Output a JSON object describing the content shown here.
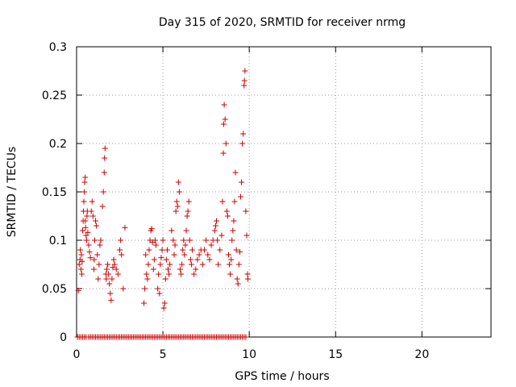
{
  "chart_data": {
    "type": "scatter",
    "title": "Day 315 of 2020, SRMTID for receiver nrmg",
    "xlabel": "GPS time / hours",
    "ylabel": "SRMTID / TECUs",
    "xlim": [
      0,
      24
    ],
    "ylim": [
      0,
      0.3
    ],
    "xticks": [
      0,
      5,
      10,
      15,
      20
    ],
    "xtick_labels": [
      "0",
      "5",
      "10",
      "15",
      "20"
    ],
    "yticks": [
      0,
      0.05,
      0.1,
      0.15,
      0.2,
      0.25,
      0.3
    ],
    "ytick_labels": [
      "0",
      "0.05",
      "0.1",
      "0.15",
      "0.2",
      "0.25",
      "0.3"
    ],
    "grid": true,
    "marker": "plus",
    "color": "#cc0000",
    "series": [
      {
        "name": "SRMTID",
        "points": [
          [
            0.1,
            0.048
          ],
          [
            0.15,
            0.075
          ],
          [
            0.2,
            0.08
          ],
          [
            0.22,
            0.09
          ],
          [
            0.25,
            0.07
          ],
          [
            0.28,
            0.085
          ],
          [
            0.3,
            0.065
          ],
          [
            0.32,
            0.078
          ],
          [
            0.35,
            0.11
          ],
          [
            0.38,
            0.12
          ],
          [
            0.4,
            0.13
          ],
          [
            0.42,
            0.14
          ],
          [
            0.45,
            0.15
          ],
          [
            0.47,
            0.16
          ],
          [
            0.5,
            0.165
          ],
          [
            0.5,
            0.12
          ],
          [
            0.52,
            0.113
          ],
          [
            0.55,
            0.105
          ],
          [
            0.58,
            0.1
          ],
          [
            0.6,
            0.125
          ],
          [
            0.62,
            0.13
          ],
          [
            0.65,
            0.108
          ],
          [
            0.7,
            0.095
          ],
          [
            0.75,
            0.088
          ],
          [
            0.8,
            0.082
          ],
          [
            0.85,
            0.13
          ],
          [
            0.9,
            0.14
          ],
          [
            0.95,
            0.125
          ],
          [
            1.0,
            0.07
          ],
          [
            1.02,
            0.08
          ],
          [
            1.05,
            0.1
          ],
          [
            1.1,
            0.12
          ],
          [
            1.15,
            0.115
          ],
          [
            1.2,
            0.085
          ],
          [
            1.25,
            0.06
          ],
          [
            1.3,
            0.075
          ],
          [
            1.35,
            0.095
          ],
          [
            1.4,
            0.1
          ],
          [
            1.5,
            0.135
          ],
          [
            1.55,
            0.15
          ],
          [
            1.6,
            0.17
          ],
          [
            1.62,
            0.185
          ],
          [
            1.65,
            0.195
          ],
          [
            1.7,
            0.065
          ],
          [
            1.72,
            0.06
          ],
          [
            1.75,
            0.07
          ],
          [
            1.8,
            0.075
          ],
          [
            1.85,
            0.065
          ],
          [
            1.9,
            0.055
          ],
          [
            1.95,
            0.045
          ],
          [
            2.0,
            0.038
          ],
          [
            2.05,
            0.06
          ],
          [
            2.1,
            0.072
          ],
          [
            2.15,
            0.08
          ],
          [
            2.2,
            0.075
          ],
          [
            2.3,
            0.07
          ],
          [
            2.4,
            0.065
          ],
          [
            2.5,
            0.09
          ],
          [
            2.55,
            0.1
          ],
          [
            2.6,
            0.085
          ],
          [
            2.7,
            0.05
          ],
          [
            2.8,
            0.113
          ],
          [
            3.9,
            0.035
          ],
          [
            3.95,
            0.05
          ],
          [
            4.0,
            0.085
          ],
          [
            4.05,
            0.065
          ],
          [
            4.1,
            0.06
          ],
          [
            4.15,
            0.075
          ],
          [
            4.2,
            0.09
          ],
          [
            4.25,
            0.1
          ],
          [
            4.3,
            0.11
          ],
          [
            4.35,
            0.112
          ],
          [
            4.4,
            0.098
          ],
          [
            4.45,
            0.07
          ],
          [
            4.5,
            0.08
          ],
          [
            4.55,
            0.1
          ],
          [
            4.6,
            0.095
          ],
          [
            4.7,
            0.05
          ],
          [
            4.75,
            0.065
          ],
          [
            4.8,
            0.045
          ],
          [
            4.85,
            0.075
          ],
          [
            4.9,
            0.082
          ],
          [
            4.95,
            0.09
          ],
          [
            5.0,
            0.1
          ],
          [
            5.05,
            0.03
          ],
          [
            5.1,
            0.035
          ],
          [
            5.15,
            0.06
          ],
          [
            5.2,
            0.08
          ],
          [
            5.25,
            0.09
          ],
          [
            5.3,
            0.07
          ],
          [
            5.35,
            0.065
          ],
          [
            5.4,
            0.075
          ],
          [
            5.5,
            0.11
          ],
          [
            5.6,
            0.1
          ],
          [
            5.65,
            0.085
          ],
          [
            5.7,
            0.095
          ],
          [
            5.75,
            0.13
          ],
          [
            5.8,
            0.14
          ],
          [
            5.85,
            0.135
          ],
          [
            5.9,
            0.16
          ],
          [
            5.95,
            0.15
          ],
          [
            6.0,
            0.07
          ],
          [
            6.05,
            0.065
          ],
          [
            6.1,
            0.075
          ],
          [
            6.15,
            0.09
          ],
          [
            6.2,
            0.1
          ],
          [
            6.25,
            0.085
          ],
          [
            6.3,
            0.095
          ],
          [
            6.35,
            0.11
          ],
          [
            6.4,
            0.125
          ],
          [
            6.45,
            0.13
          ],
          [
            6.5,
            0.14
          ],
          [
            6.55,
            0.1
          ],
          [
            6.6,
            0.08
          ],
          [
            6.65,
            0.075
          ],
          [
            6.7,
            0.09
          ],
          [
            6.8,
            0.065
          ],
          [
            6.9,
            0.07
          ],
          [
            7.0,
            0.08
          ],
          [
            7.1,
            0.085
          ],
          [
            7.2,
            0.09
          ],
          [
            7.3,
            0.075
          ],
          [
            7.4,
            0.09
          ],
          [
            7.5,
            0.1
          ],
          [
            7.6,
            0.085
          ],
          [
            7.7,
            0.08
          ],
          [
            7.8,
            0.095
          ],
          [
            7.9,
            0.1
          ],
          [
            8.0,
            0.11
          ],
          [
            8.05,
            0.115
          ],
          [
            8.1,
            0.12
          ],
          [
            8.15,
            0.1
          ],
          [
            8.2,
            0.075
          ],
          [
            8.3,
            0.09
          ],
          [
            8.4,
            0.105
          ],
          [
            8.45,
            0.14
          ],
          [
            8.5,
            0.19
          ],
          [
            8.52,
            0.22
          ],
          [
            8.55,
            0.24
          ],
          [
            8.6,
            0.225
          ],
          [
            8.65,
            0.2
          ],
          [
            8.7,
            0.13
          ],
          [
            8.75,
            0.125
          ],
          [
            8.8,
            0.085
          ],
          [
            8.85,
            0.075
          ],
          [
            8.9,
            0.065
          ],
          [
            8.95,
            0.08
          ],
          [
            9.0,
            0.1
          ],
          [
            9.05,
            0.11
          ],
          [
            9.1,
            0.12
          ],
          [
            9.15,
            0.14
          ],
          [
            9.2,
            0.17
          ],
          [
            9.25,
            0.09
          ],
          [
            9.3,
            0.06
          ],
          [
            9.35,
            0.055
          ],
          [
            9.4,
            0.075
          ],
          [
            9.45,
            0.088
          ],
          [
            9.5,
            0.145
          ],
          [
            9.55,
            0.16
          ],
          [
            9.6,
            0.2
          ],
          [
            9.65,
            0.21
          ],
          [
            9.7,
            0.26
          ],
          [
            9.72,
            0.265
          ],
          [
            9.75,
            0.275
          ],
          [
            9.8,
            0.13
          ],
          [
            9.85,
            0.105
          ],
          [
            9.9,
            0.065
          ],
          [
            9.92,
            0.06
          ]
        ],
        "zero_x": [
          0.05,
          0.15,
          0.25,
          0.35,
          0.45,
          0.55,
          0.7,
          0.8,
          0.9,
          1.0,
          1.1,
          1.2,
          1.3,
          1.4,
          1.5,
          1.6,
          1.7,
          1.8,
          1.9,
          2.0,
          2.1,
          2.2,
          2.3,
          2.4,
          2.5,
          2.6,
          2.7,
          2.8,
          2.9,
          3.0,
          3.1,
          3.2,
          3.3,
          3.4,
          3.5,
          3.6,
          3.7,
          3.8,
          3.9,
          4.0,
          4.1,
          4.2,
          4.3,
          4.4,
          4.5,
          4.6,
          4.7,
          4.8,
          4.9,
          5.0,
          5.1,
          5.2,
          5.3,
          5.4,
          5.5,
          5.6,
          5.7,
          5.8,
          5.9,
          6.0,
          6.1,
          6.2,
          6.3,
          6.4,
          6.5,
          6.6,
          6.7,
          6.8,
          6.9,
          7.0,
          7.1,
          7.2,
          7.3,
          7.4,
          7.5,
          7.6,
          7.7,
          7.8,
          7.9,
          8.0,
          8.1,
          8.2,
          8.3,
          8.4,
          8.5,
          8.6,
          8.7,
          8.8,
          8.9,
          9.0,
          9.1,
          9.2,
          9.3,
          9.4,
          9.5,
          9.6,
          9.7,
          9.8
        ]
      }
    ]
  }
}
